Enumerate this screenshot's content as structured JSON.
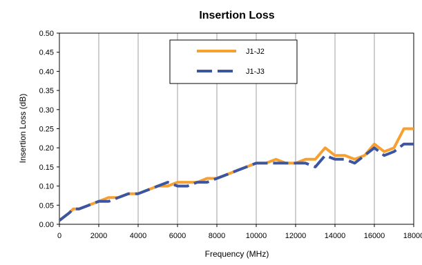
{
  "chart_data": {
    "type": "line",
    "title": "Insertion Loss",
    "xlabel": "Frequency (MHz)",
    "ylabel": "Insertion Loss  (dB)",
    "xlim": [
      0,
      18000
    ],
    "ylim": [
      0,
      0.5
    ],
    "xticks": [
      "0",
      "2000",
      "4000",
      "6000",
      "8000",
      "10000",
      "12000",
      "14000",
      "16000",
      "18000"
    ],
    "yticks": [
      "0.00",
      "0.05",
      "0.10",
      "0.15",
      "0.20",
      "0.25",
      "0.30",
      "0.35",
      "0.40",
      "0.45",
      "0.50"
    ],
    "grid": "vertical",
    "legend_position": "top-center",
    "series": [
      {
        "name": "J1-J2",
        "color": "#F7A030",
        "style": "solid",
        "points": [
          [
            0,
            0.01
          ],
          [
            500,
            0.03
          ],
          [
            700,
            0.04
          ],
          [
            1000,
            0.04
          ],
          [
            1500,
            0.05
          ],
          [
            2000,
            0.06
          ],
          [
            2500,
            0.07
          ],
          [
            3000,
            0.07
          ],
          [
            3500,
            0.08
          ],
          [
            4000,
            0.08
          ],
          [
            4500,
            0.09
          ],
          [
            5000,
            0.1
          ],
          [
            5500,
            0.1
          ],
          [
            6000,
            0.11
          ],
          [
            7000,
            0.11
          ],
          [
            7500,
            0.12
          ],
          [
            8000,
            0.12
          ],
          [
            8500,
            0.13
          ],
          [
            9000,
            0.14
          ],
          [
            9500,
            0.15
          ],
          [
            10000,
            0.16
          ],
          [
            10500,
            0.16
          ],
          [
            11000,
            0.17
          ],
          [
            11500,
            0.16
          ],
          [
            12000,
            0.16
          ],
          [
            12500,
            0.17
          ],
          [
            13000,
            0.17
          ],
          [
            13500,
            0.2
          ],
          [
            14000,
            0.18
          ],
          [
            14500,
            0.18
          ],
          [
            15000,
            0.17
          ],
          [
            15500,
            0.18
          ],
          [
            16000,
            0.21
          ],
          [
            16500,
            0.19
          ],
          [
            17000,
            0.2
          ],
          [
            17500,
            0.25
          ],
          [
            18000,
            0.25
          ]
        ]
      },
      {
        "name": "J1-J3",
        "color": "#3B55A0",
        "style": "dashed",
        "points": [
          [
            0,
            0.01
          ],
          [
            500,
            0.03
          ],
          [
            700,
            0.04
          ],
          [
            1000,
            0.04
          ],
          [
            1500,
            0.05
          ],
          [
            2000,
            0.06
          ],
          [
            2500,
            0.06
          ],
          [
            3000,
            0.07
          ],
          [
            3500,
            0.08
          ],
          [
            4000,
            0.08
          ],
          [
            4500,
            0.09
          ],
          [
            5000,
            0.1
          ],
          [
            5500,
            0.11
          ],
          [
            6000,
            0.1
          ],
          [
            6500,
            0.1
          ],
          [
            7000,
            0.11
          ],
          [
            7500,
            0.11
          ],
          [
            8000,
            0.12
          ],
          [
            8500,
            0.13
          ],
          [
            9000,
            0.14
          ],
          [
            9500,
            0.15
          ],
          [
            10000,
            0.16
          ],
          [
            10500,
            0.16
          ],
          [
            11000,
            0.16
          ],
          [
            11500,
            0.16
          ],
          [
            12000,
            0.16
          ],
          [
            12500,
            0.16
          ],
          [
            13000,
            0.15
          ],
          [
            13500,
            0.18
          ],
          [
            14000,
            0.17
          ],
          [
            14500,
            0.17
          ],
          [
            15000,
            0.16
          ],
          [
            15500,
            0.18
          ],
          [
            16000,
            0.2
          ],
          [
            16500,
            0.18
          ],
          [
            17000,
            0.19
          ],
          [
            17500,
            0.21
          ],
          [
            18000,
            0.21
          ]
        ]
      }
    ]
  }
}
